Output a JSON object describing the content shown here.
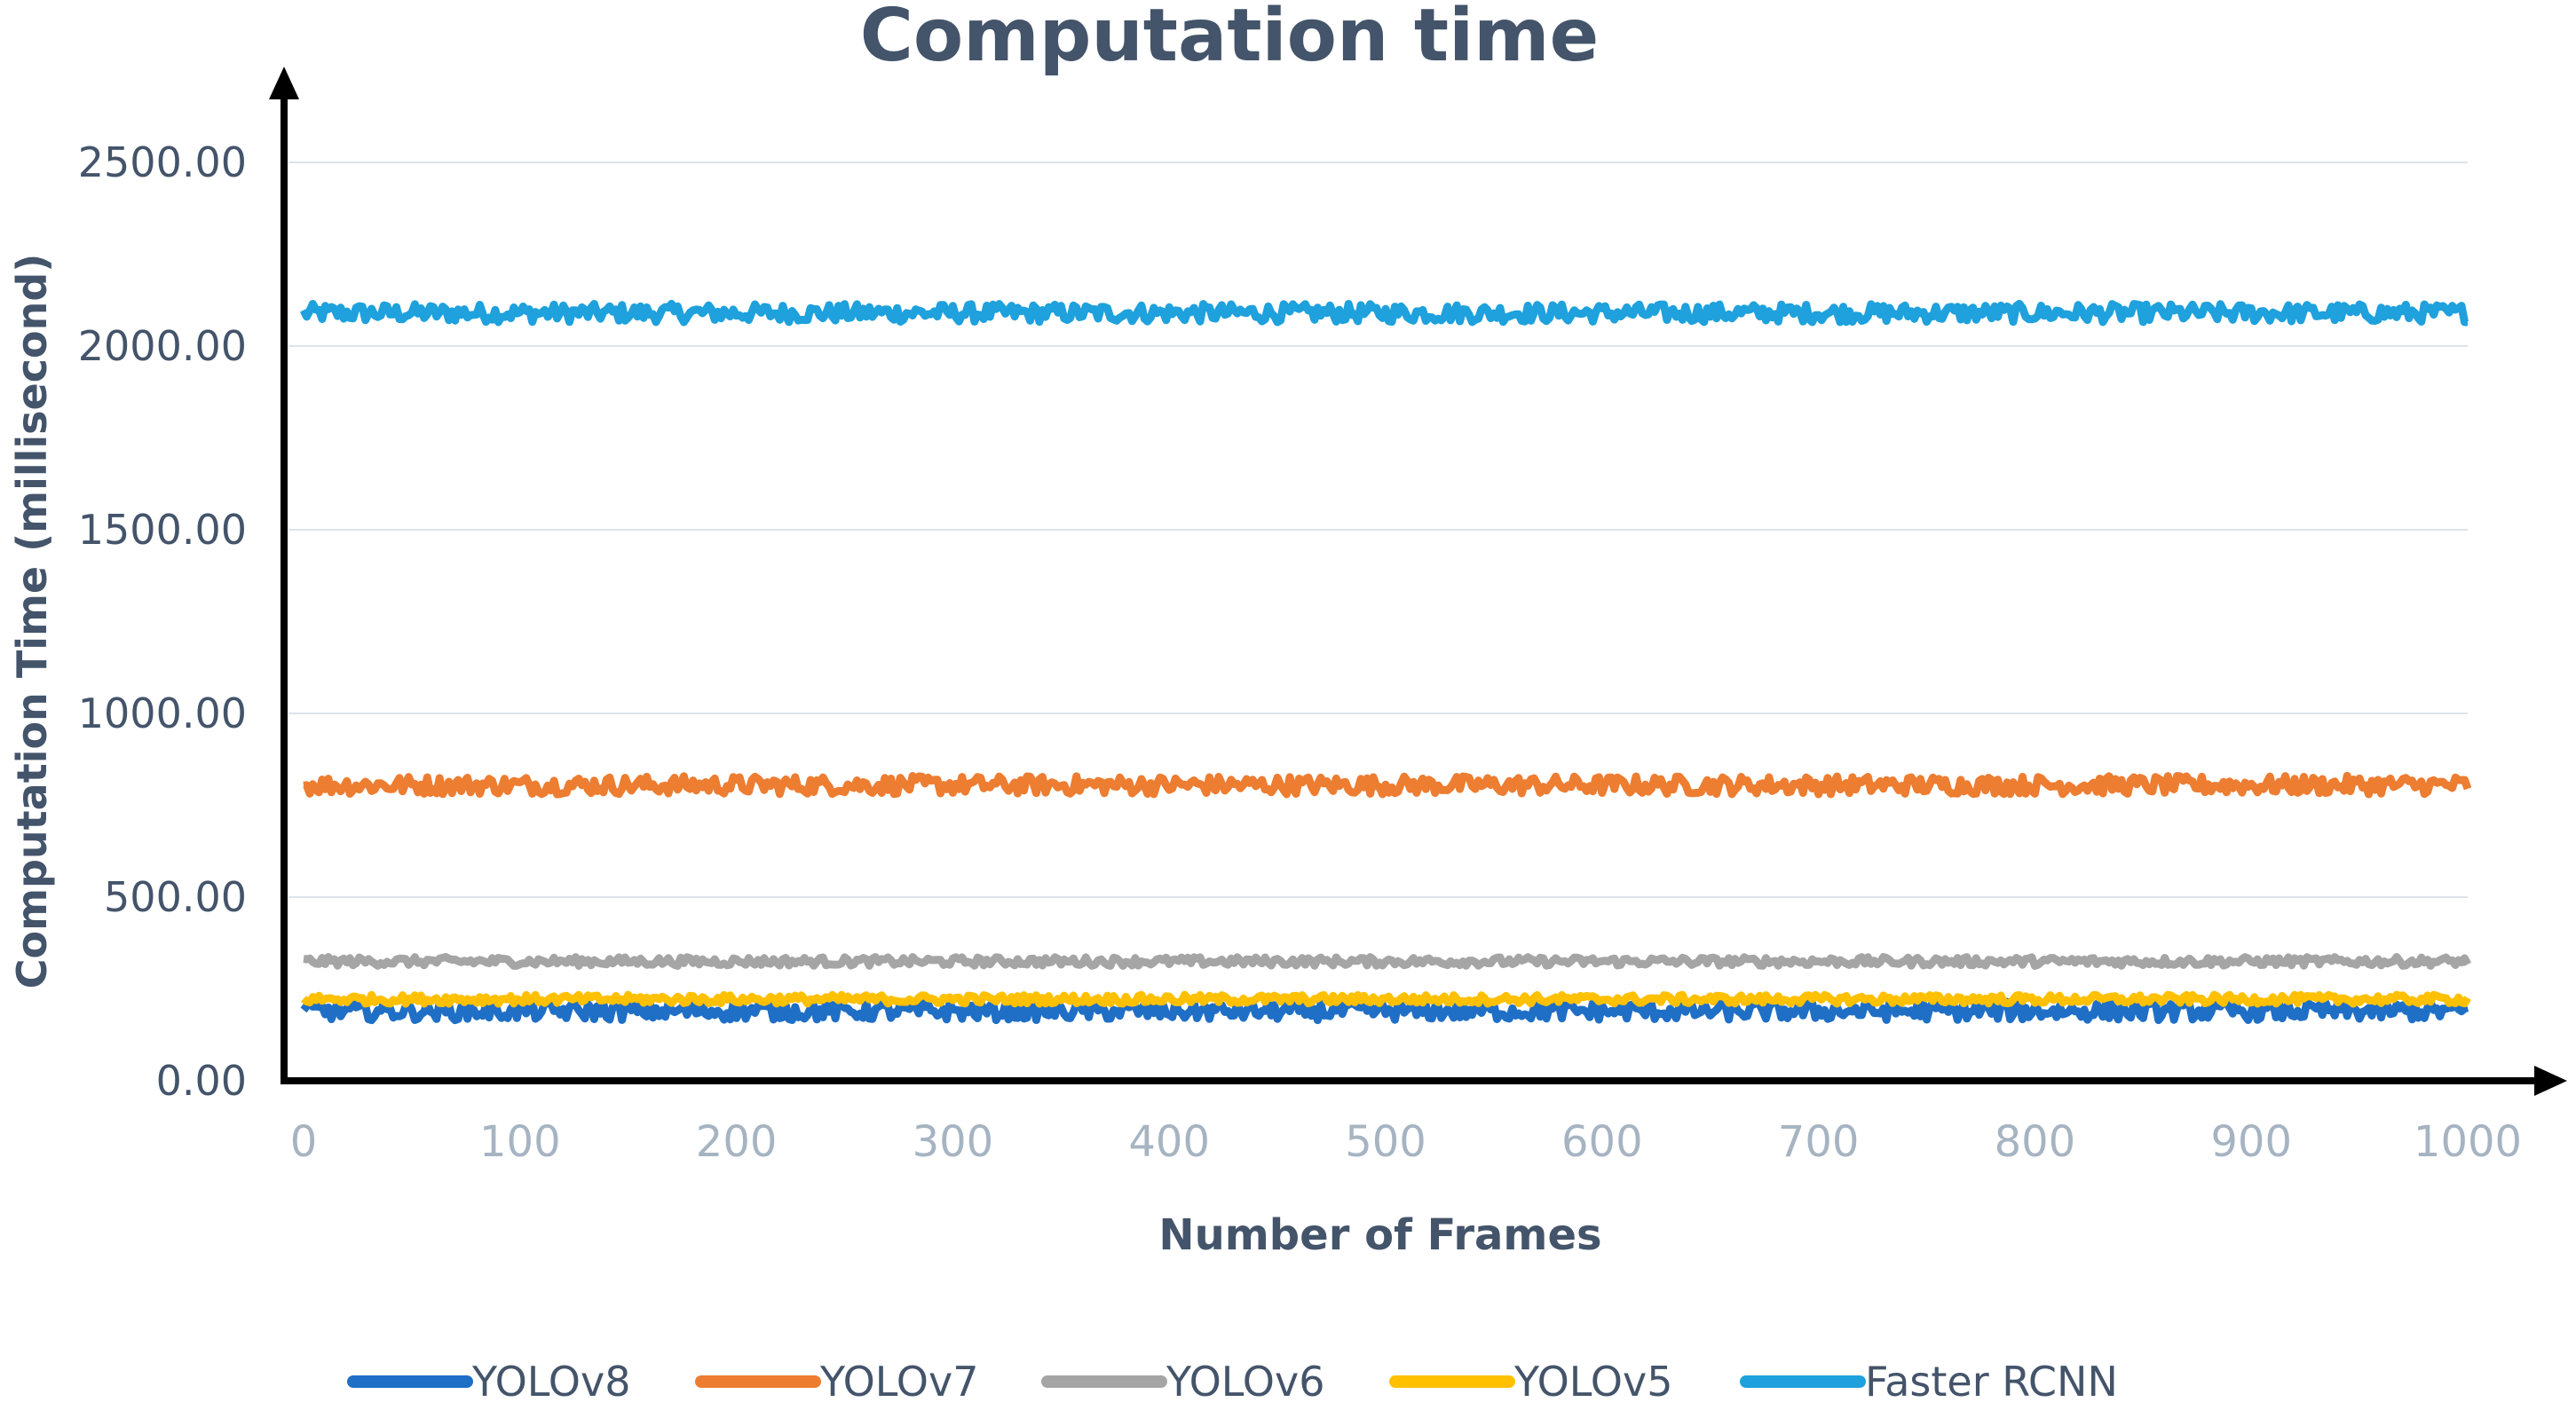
{
  "chart_data": {
    "type": "line",
    "title": "Computation time",
    "xlabel": "Number of Frames",
    "ylabel": "Computation Time (millisecond)",
    "xlim": [
      0,
      1000
    ],
    "ylim": [
      0,
      2500
    ],
    "x_ticks": [
      "0",
      "100",
      "200",
      "300",
      "400",
      "500",
      "600",
      "700",
      "800",
      "900",
      "1000"
    ],
    "y_ticks": [
      "0.00",
      "500.00",
      "1000.00",
      "1500.00",
      "2000.00",
      "2500.00"
    ],
    "grid": true,
    "legend_position": "bottom",
    "series": [
      {
        "name": "YOLOv8",
        "color": "#1f6fc6",
        "mean": 190,
        "noise": 25
      },
      {
        "name": "YOLOv7",
        "color": "#ed7d31",
        "mean": 805,
        "noise": 25
      },
      {
        "name": "YOLOv6",
        "color": "#a5a5a5",
        "mean": 325,
        "noise": 12
      },
      {
        "name": "YOLOv5",
        "color": "#ffc000",
        "mean": 222,
        "noise": 12
      },
      {
        "name": "Faster RCNN",
        "color": "#1ea1dc",
        "mean": 2090,
        "noise": 25
      }
    ]
  }
}
